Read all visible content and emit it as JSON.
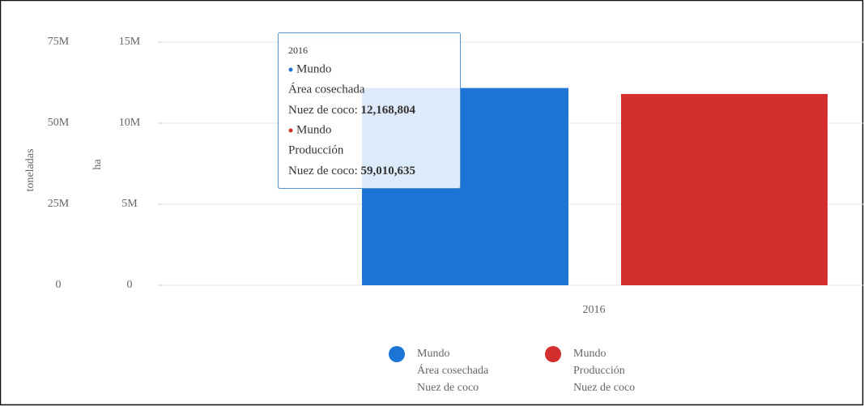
{
  "chart_data": {
    "type": "bar",
    "categories": [
      "2016"
    ],
    "series": [
      {
        "name": "Mundo",
        "element": "Área cosechada",
        "item": "Nuez de coco",
        "tooltip_label": "Nuez de coco:",
        "color": "#1c74d4",
        "axis": "y",
        "values": [
          12168804
        ],
        "value_labels": [
          "12,168,804"
        ]
      },
      {
        "name": "Mundo",
        "element": "Producción",
        "item": "Nuez de coco",
        "tooltip_label": "Nuez de coco:",
        "color": "#d32f2f",
        "axis": "y2",
        "values": [
          59010635
        ],
        "value_labels": [
          "59,010,635"
        ]
      }
    ],
    "ylabel": "ha",
    "ylim": [
      0,
      15000000
    ],
    "yticks": [
      0,
      {
        "value": 5000000,
        "label": "5M"
      },
      {
        "value": 10000000,
        "label": "10M"
      },
      {
        "value": 15000000,
        "label": "15M"
      }
    ],
    "y2label": "toneladas",
    "y2lim": [
      0,
      75000000
    ],
    "y2ticks": [
      0,
      {
        "value": 25000000,
        "label": "25M"
      },
      {
        "value": 50000000,
        "label": "50M"
      },
      {
        "value": 75000000,
        "label": "75M"
      }
    ],
    "grid": true,
    "legend": "bottom"
  }
}
